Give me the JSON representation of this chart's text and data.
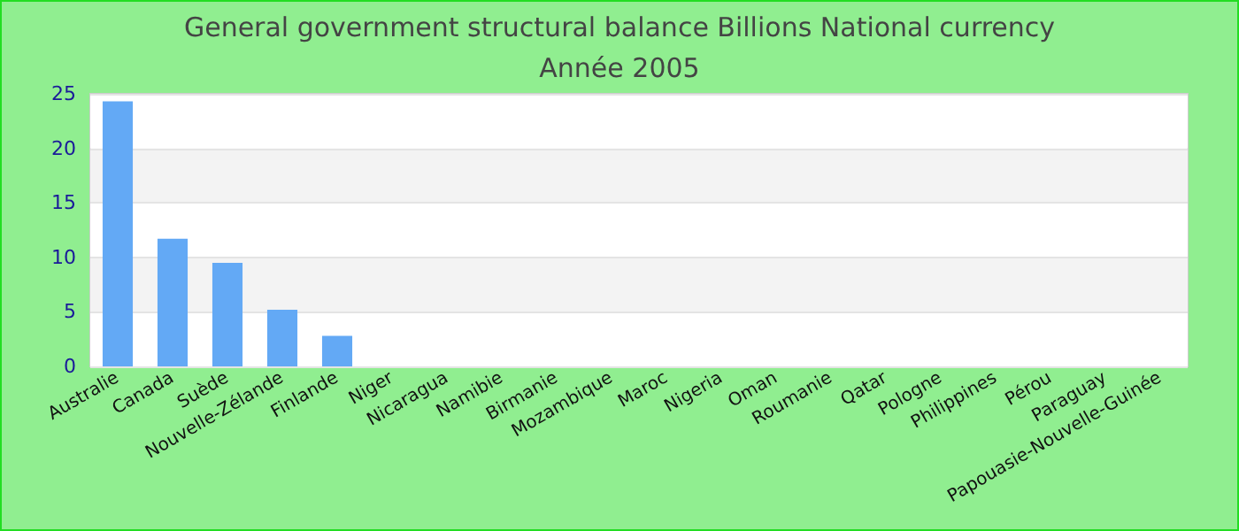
{
  "chart_data": {
    "type": "bar",
    "title": "General government structural balance Billions National currency",
    "subtitle": "Année 2005",
    "categories": [
      "Australie",
      "Canada",
      "Suède",
      "Nouvelle-Zélande",
      "Finlande",
      "Niger",
      "Nicaragua",
      "Namibie",
      "Birmanie",
      "Mozambique",
      "Maroc",
      "Nigeria",
      "Oman",
      "Roumanie",
      "Qatar",
      "Pologne",
      "Philippines",
      "Pérou",
      "Paraguay",
      "Papouasie-Nouvelle-Guinée"
    ],
    "values": [
      24.3,
      11.7,
      9.5,
      5.2,
      2.8,
      null,
      null,
      null,
      null,
      null,
      null,
      null,
      null,
      null,
      null,
      null,
      null,
      null,
      null,
      null
    ],
    "color": "#63a9f5",
    "ylim": [
      0,
      25
    ],
    "yticks": [
      0,
      5,
      10,
      15,
      20,
      25
    ],
    "grid": "y"
  }
}
